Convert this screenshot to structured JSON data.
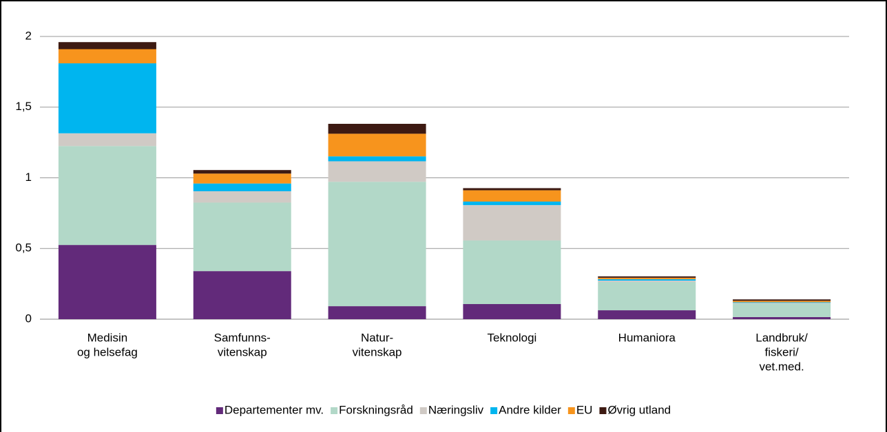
{
  "chart_data": {
    "type": "bar",
    "stacked": true,
    "categories": [
      [
        "Medisin",
        "og helsefag"
      ],
      [
        "Samfunns-",
        "vitenskap"
      ],
      [
        "Natur-",
        "vitenskap"
      ],
      [
        "Teknologi"
      ],
      [
        "Humaniora"
      ],
      [
        "Landbruk/",
        "fiskeri/",
        "vet.med."
      ]
    ],
    "series": [
      {
        "name": "Departementer mv.",
        "color": "#622a7a",
        "values": [
          0.525,
          0.34,
          0.092,
          0.107,
          0.063,
          0.015
        ]
      },
      {
        "name": "Forskningsråd",
        "color": "#b2d8c8",
        "values": [
          0.7,
          0.485,
          0.88,
          0.45,
          0.2,
          0.095
        ]
      },
      {
        "name": "Næringsliv",
        "color": "#d0cac5",
        "values": [
          0.09,
          0.08,
          0.145,
          0.25,
          0.01,
          0.005
        ]
      },
      {
        "name": "Andre kilder",
        "color": "#00b5ef",
        "values": [
          0.495,
          0.055,
          0.035,
          0.025,
          0.01,
          0.005
        ]
      },
      {
        "name": "EU",
        "color": "#f7941d",
        "values": [
          0.1,
          0.07,
          0.16,
          0.08,
          0.01,
          0.01
        ]
      },
      {
        "name": "Øvrig utland",
        "color": "#3d1a12",
        "values": [
          0.05,
          0.025,
          0.07,
          0.015,
          0.01,
          0.01
        ]
      }
    ],
    "ylim": [
      0,
      2
    ],
    "yticks": [
      0,
      {
        "value": 0.5,
        "label": "0,5"
      },
      1,
      {
        "value": 1.5,
        "label": "1,5"
      },
      2
    ],
    "grid": true,
    "legend": "bottom"
  }
}
